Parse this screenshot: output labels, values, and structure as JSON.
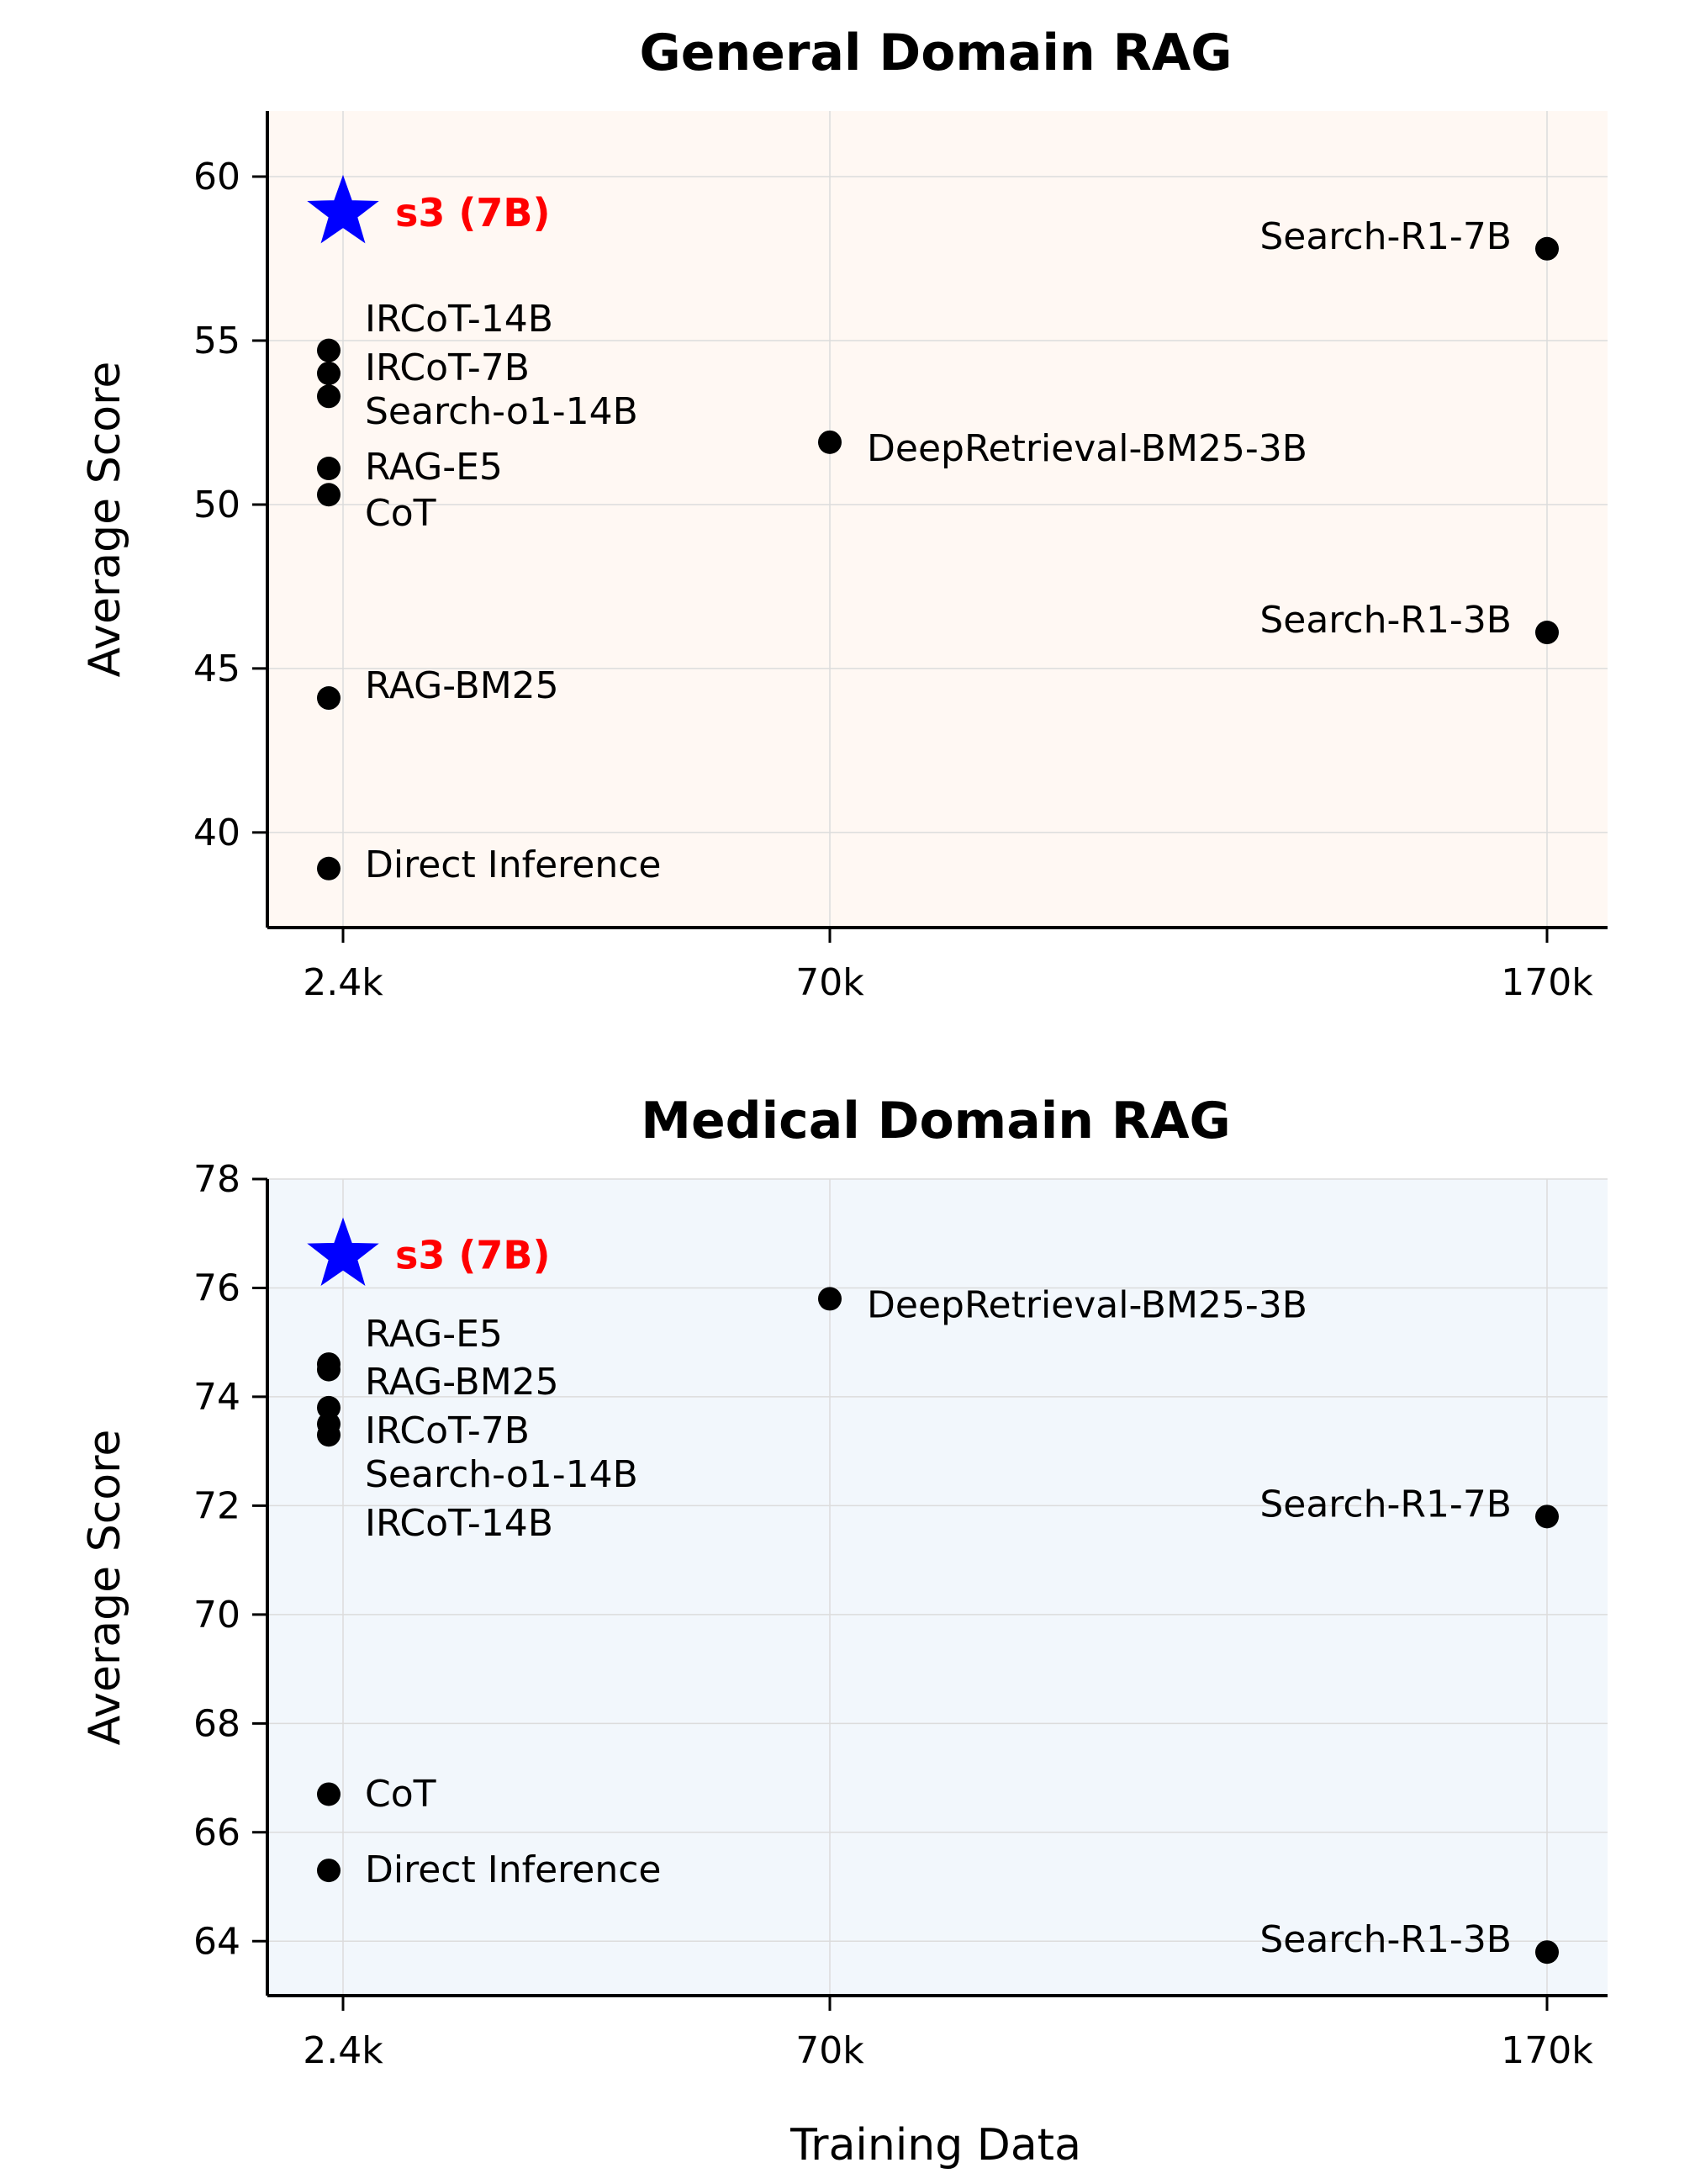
{
  "x_axis_label": "Training Data",
  "colors": {
    "highlight_star": "#0000ff",
    "highlight_text": "#ff0000",
    "point": "#000000",
    "general_bg": "#fff8f3",
    "medical_bg": "#f2f7fc"
  },
  "chart_data": [
    {
      "type": "scatter",
      "title": "General Domain RAG",
      "xlabel": "",
      "ylabel": "Average Score",
      "x_tick_labels": [
        "2.4k",
        "70k",
        "170k"
      ],
      "y_ticks": [
        40,
        45,
        50,
        55,
        60
      ],
      "ylim": [
        37.1,
        62.0
      ],
      "grid": true,
      "background": "#fff8f3",
      "highlight": {
        "label": "s3 (7B)",
        "x": "2.4k",
        "y": 58.9,
        "marker": "star"
      },
      "points": [
        {
          "label": "IRCoT-14B",
          "x": "2.4k",
          "y": 54.7
        },
        {
          "label": "IRCoT-7B",
          "x": "2.4k",
          "y": 54.0
        },
        {
          "label": "Search-o1-14B",
          "x": "2.4k",
          "y": 53.3
        },
        {
          "label": "RAG-E5",
          "x": "2.4k",
          "y": 51.1
        },
        {
          "label": "CoT",
          "x": "2.4k",
          "y": 50.3
        },
        {
          "label": "RAG-BM25",
          "x": "2.4k",
          "y": 44.1
        },
        {
          "label": "Direct Inference",
          "x": "2.4k",
          "y": 38.9
        },
        {
          "label": "DeepRetrieval-BM25-3B",
          "x": "70k",
          "y": 51.9
        },
        {
          "label": "Search-R1-7B",
          "x": "170k",
          "y": 57.8
        },
        {
          "label": "Search-R1-3B",
          "x": "170k",
          "y": 46.1
        }
      ]
    },
    {
      "type": "scatter",
      "title": "Medical Domain RAG",
      "xlabel": "Training Data",
      "ylabel": "Average Score",
      "x_tick_labels": [
        "2.4k",
        "70k",
        "170k"
      ],
      "y_ticks": [
        64,
        66,
        68,
        70,
        72,
        74,
        76,
        78
      ],
      "ylim": [
        63.0,
        78.0
      ],
      "grid": true,
      "background": "#f2f7fc",
      "highlight": {
        "label": "s3 (7B)",
        "x": "2.4k",
        "y": 76.6,
        "marker": "star"
      },
      "points": [
        {
          "label": "RAG-E5",
          "x": "2.4k",
          "y": 74.6
        },
        {
          "label": "RAG-BM25",
          "x": "2.4k",
          "y": 74.5
        },
        {
          "label": "IRCoT-7B",
          "x": "2.4k",
          "y": 73.8
        },
        {
          "label": "Search-o1-14B",
          "x": "2.4k",
          "y": 73.5
        },
        {
          "label": "IRCoT-14B",
          "x": "2.4k",
          "y": 73.3
        },
        {
          "label": "CoT",
          "x": "2.4k",
          "y": 66.7
        },
        {
          "label": "Direct Inference",
          "x": "2.4k",
          "y": 65.3
        },
        {
          "label": "DeepRetrieval-BM25-3B",
          "x": "70k",
          "y": 75.8
        },
        {
          "label": "Search-R1-7B",
          "x": "170k",
          "y": 71.8
        },
        {
          "label": "Search-R1-3B",
          "x": "170k",
          "y": 63.8
        }
      ]
    }
  ]
}
